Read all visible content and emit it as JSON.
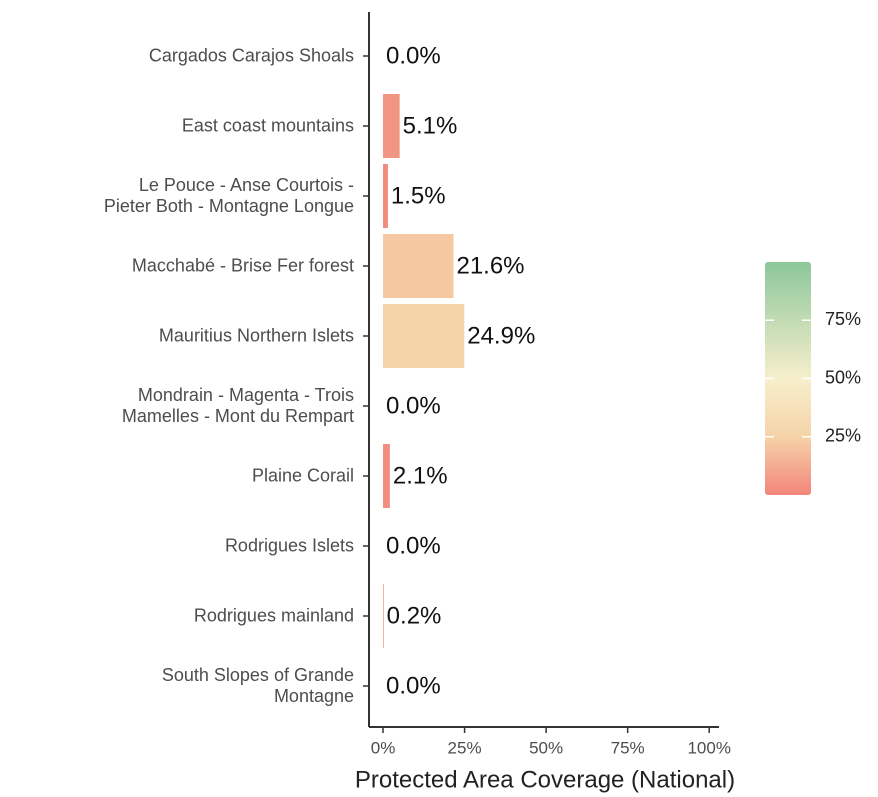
{
  "chart_data": {
    "type": "hbar",
    "categories": [
      "Cargados Carajos Shoals",
      "East coast mountains",
      "Le Pouce - Anse Courtois -\nPieter Both - Montagne Longue",
      "Macchabé - Brise Fer forest",
      "Mauritius Northern Islets",
      "Mondrain - Magenta - Trois\nMamelles - Mont du Rempart",
      "Plaine Corail",
      "Rodrigues Islets",
      "Rodrigues mainland",
      "South Slopes of Grande\nMontagne"
    ],
    "values": [
      0,
      5.1,
      1.5,
      21.6,
      24.9,
      0,
      2.1,
      0,
      0.2,
      0
    ],
    "value_labels": [
      "0.0%",
      "5.1%",
      "1.5%",
      "21.6%",
      "24.9%",
      "0.0%",
      "2.1%",
      "0.0%",
      "0.2%",
      "0.0%"
    ],
    "x_label": "Protected Area Coverage (National)",
    "xlim": [
      -4.3,
      103
    ],
    "xticks": [
      {
        "value": 0,
        "label": "0%"
      },
      {
        "value": 25,
        "label": "25%"
      },
      {
        "value": 50,
        "label": "50%"
      },
      {
        "value": 75,
        "label": "75%"
      },
      {
        "value": 100,
        "label": "100%"
      }
    ],
    "colorscale": [
      [
        0,
        "#f3857a"
      ],
      [
        25,
        "#f5d3a8"
      ],
      [
        50,
        "#f7efcc"
      ],
      [
        100,
        "#8cc79a"
      ]
    ],
    "legend_lim": [
      0,
      100
    ],
    "legend_ticks": [
      {
        "value": 25,
        "label": "25%"
      },
      {
        "value": 50,
        "label": "50%"
      },
      {
        "value": 75,
        "label": "75%"
      }
    ]
  }
}
